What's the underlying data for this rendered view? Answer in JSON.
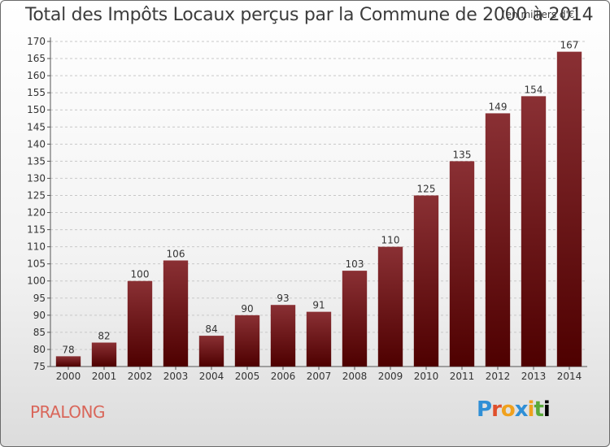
{
  "title": "Total des Impôts Locaux perçus par la Commune de 2000 à 2014",
  "subtitle": "(en milliers d'€)",
  "commune": "PRALONG",
  "logo_text": [
    "P",
    "r",
    "o",
    "x",
    "i",
    "t",
    "i"
  ],
  "chart_data": {
    "type": "bar",
    "title": "Total des Impôts Locaux perçus par la Commune de 2000 à 2014",
    "subtitle": "(en milliers d'€)",
    "categories": [
      "2000",
      "2001",
      "2002",
      "2003",
      "2004",
      "2005",
      "2006",
      "2007",
      "2008",
      "2009",
      "2010",
      "2011",
      "2012",
      "2013",
      "2014"
    ],
    "values": [
      78,
      82,
      100,
      106,
      84,
      90,
      93,
      91,
      103,
      110,
      125,
      135,
      149,
      154,
      167
    ],
    "ylim": [
      75,
      170
    ],
    "yticks": [
      75,
      80,
      85,
      90,
      95,
      100,
      105,
      110,
      115,
      120,
      125,
      130,
      135,
      140,
      145,
      150,
      155,
      160,
      165,
      170
    ],
    "grid": true,
    "bar_color": "#6b0f14",
    "xlabel": "",
    "ylabel": ""
  }
}
